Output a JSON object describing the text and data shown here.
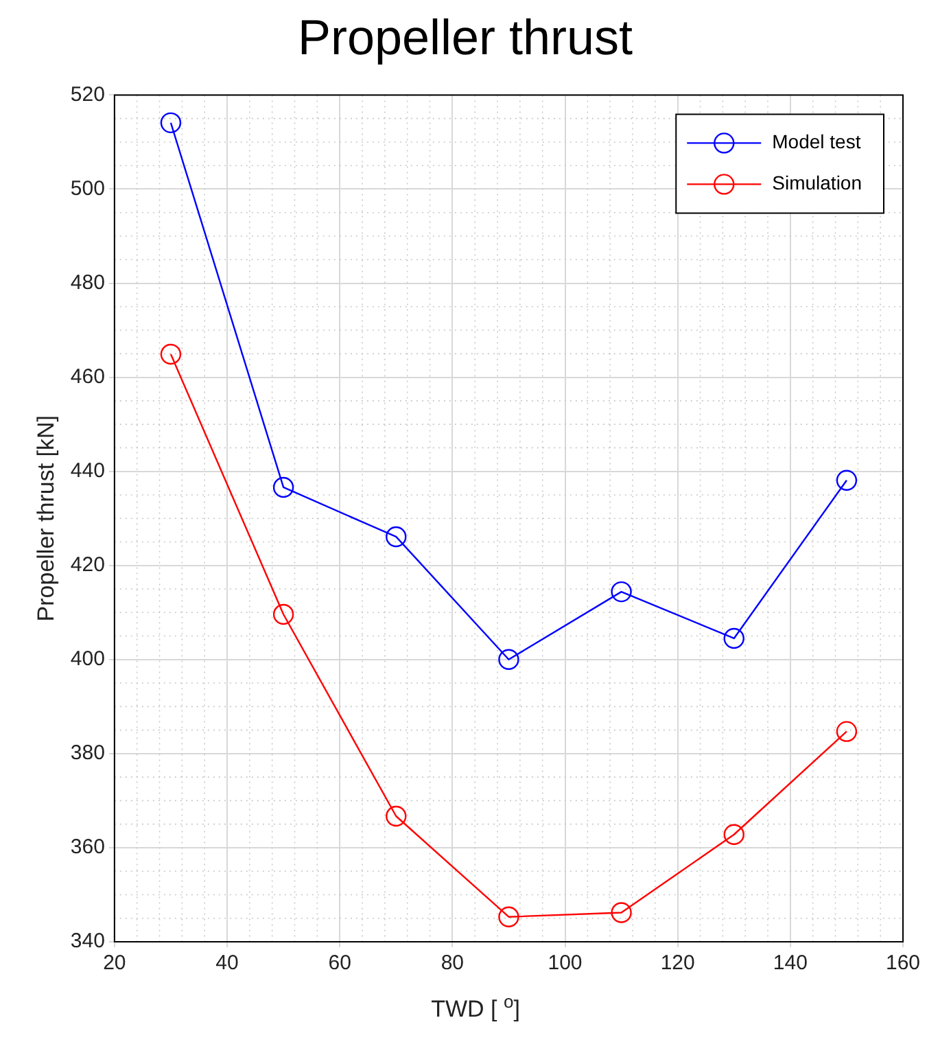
{
  "chart_data": {
    "type": "line",
    "title": "Propeller thrust",
    "xlabel": "TWD [ $^{o}$]",
    "ylabel": "Propeller thrust [kN]",
    "x": [
      30,
      50,
      70,
      90,
      110,
      130,
      150
    ],
    "series": [
      {
        "name": "Model test",
        "color": "#0000ff",
        "values": [
          514.1,
          436.6,
          426.1,
          400,
          414.4,
          404.5,
          438.1
        ]
      },
      {
        "name": "Simulation",
        "color": "#ff0000",
        "values": [
          464.9,
          409.6,
          366.7,
          345.3,
          346.2,
          362.8,
          384.7
        ]
      }
    ],
    "xlim": [
      20,
      160
    ],
    "xticks": [
      20,
      40,
      60,
      80,
      100,
      120,
      140,
      160
    ],
    "ylim": [
      340,
      520
    ],
    "yticks": [
      340,
      360,
      380,
      400,
      420,
      440,
      460,
      480,
      500,
      520
    ],
    "grid": true,
    "legend": "top right",
    "marker": "circle",
    "line_style": "solid"
  }
}
